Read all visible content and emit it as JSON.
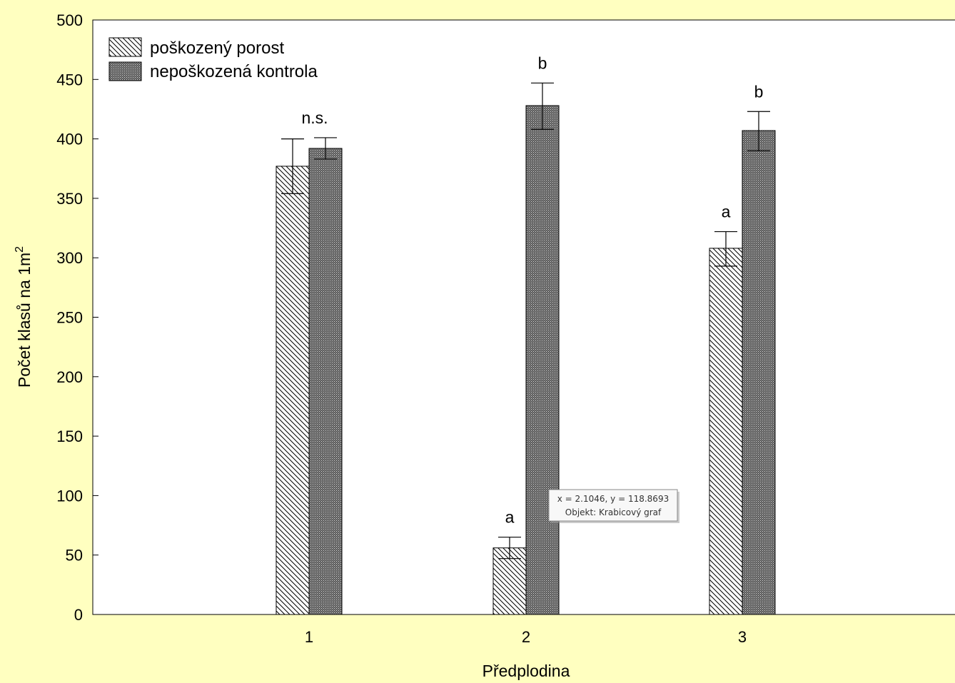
{
  "chart_data": {
    "type": "bar",
    "categories": [
      "1",
      "2",
      "3"
    ],
    "series": [
      {
        "name": "poškozený porost",
        "values": [
          377,
          56,
          308
        ],
        "error_low": [
          354,
          47,
          293
        ],
        "error_high": [
          400,
          65,
          322
        ],
        "pattern": "diagonal-hatch"
      },
      {
        "name": "nepoškozená kontrola",
        "values": [
          392,
          428,
          407
        ],
        "error_low": [
          383,
          408,
          390
        ],
        "error_high": [
          401,
          447,
          423
        ],
        "pattern": "dense-stipple"
      }
    ],
    "annotations": [
      {
        "category": "1",
        "series": "both",
        "text": "n.s."
      },
      {
        "category": "2",
        "series": 0,
        "text": "a"
      },
      {
        "category": "2",
        "series": 1,
        "text": "b"
      },
      {
        "category": "3",
        "series": 0,
        "text": "a"
      },
      {
        "category": "3",
        "series": 1,
        "text": "b"
      }
    ],
    "xlabel": "Předplodina",
    "ylabel_main": "Počet klasů na 1m",
    "ylabel_superscript": "2",
    "ylim": [
      0,
      500
    ],
    "yticks": [
      0,
      50,
      100,
      150,
      200,
      250,
      300,
      350,
      400,
      450,
      500
    ],
    "xlim": [
      0,
      3
    ],
    "grid": false,
    "legend_position": "top-left"
  },
  "tooltip": {
    "line1": "x = 2.1046, y = 118.8693",
    "line2": "Objekt: Krabicový graf"
  },
  "colors": {
    "background": "#ffffc0",
    "plot_area": "#ffffff",
    "bar_dark": "#555555"
  }
}
